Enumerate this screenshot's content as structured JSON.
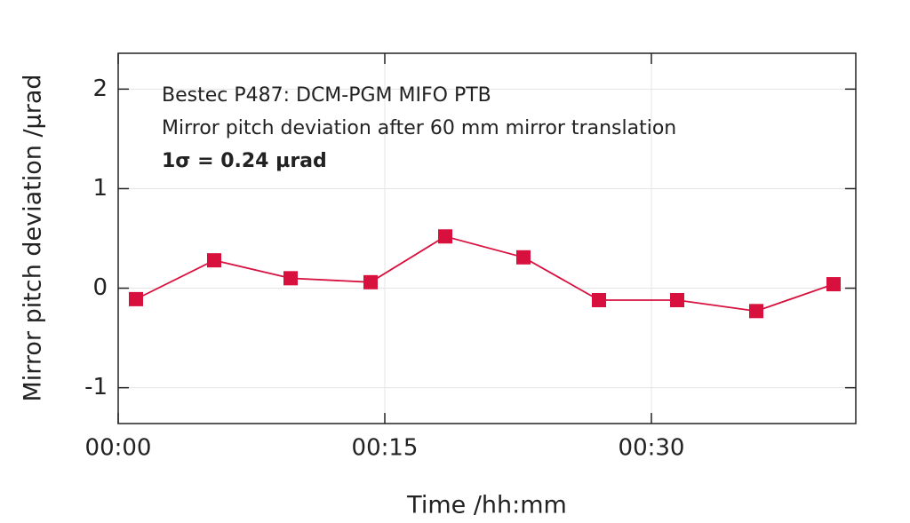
{
  "chart_data": {
    "type": "line",
    "annotations": [
      "Bestec P487: DCM-PGM MIFO PTB",
      "Mirror pitch deviation after 60 mm mirror translation",
      "1σ = 0.24 µrad"
    ],
    "xlabel": "Time /hh:mm",
    "ylabel": "Mirror pitch deviation /µrad",
    "x": [
      1.0,
      5.4,
      9.7,
      14.2,
      18.4,
      22.8,
      27.05,
      31.45,
      35.9,
      40.25
    ],
    "series": [
      {
        "color": "#d8103e",
        "values": [
          -0.11,
          0.28,
          0.1,
          0.06,
          0.52,
          0.31,
          -0.12,
          -0.12,
          -0.23,
          0.04
        ]
      }
    ],
    "xlim": [
      0,
      41.5
    ],
    "xticks": [
      {
        "value": 0,
        "label": "00:00"
      },
      {
        "value": 15,
        "label": "00:15"
      },
      {
        "value": 30,
        "label": "00:30"
      }
    ],
    "ylim": [
      -1.36,
      2.36
    ],
    "yticks": [
      -1,
      0,
      1,
      2
    ],
    "grid": true
  }
}
